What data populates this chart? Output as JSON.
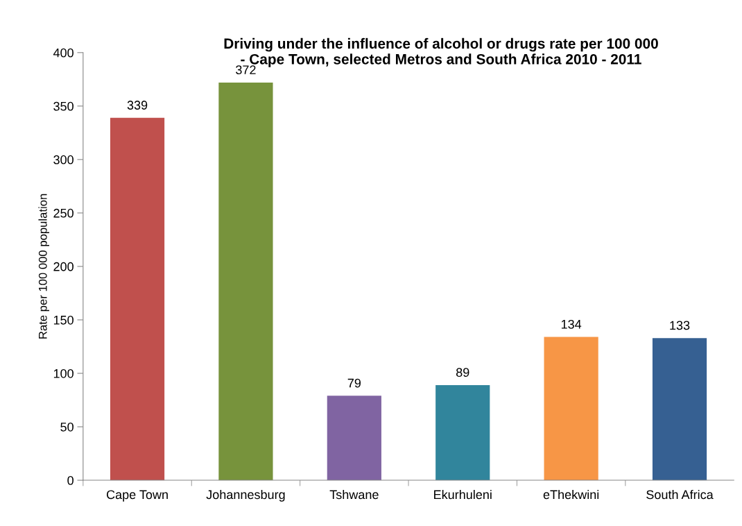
{
  "chart_data": {
    "type": "bar",
    "title": "Driving under the influence of alcohol or drugs rate per 100 000\n- Cape Town, selected Metros and South Africa 2010 - 2011",
    "ylabel": "Rate per 100 000 population",
    "categories": [
      "Cape Town",
      "Johannesburg",
      "Tshwane",
      "Ekurhuleni",
      "eThekwini",
      "South Africa"
    ],
    "values": [
      339,
      372,
      79,
      89,
      134,
      133
    ],
    "colors": [
      "#c0504d",
      "#77933c",
      "#8064a2",
      "#31859c",
      "#f79646",
      "#366092"
    ],
    "ylim": [
      0,
      400
    ],
    "yticks": [
      0,
      50,
      100,
      150,
      200,
      250,
      300,
      350,
      400
    ],
    "grid": false,
    "legend": false,
    "data_labels": true
  }
}
